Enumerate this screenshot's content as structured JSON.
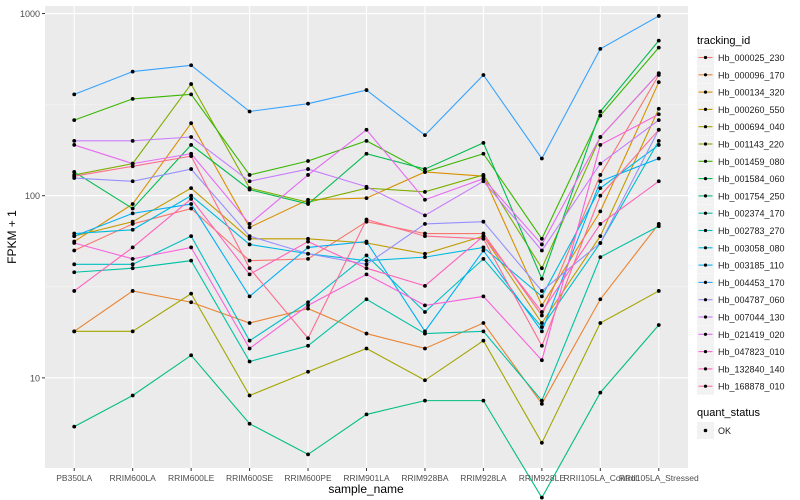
{
  "chart_data": {
    "type": "line",
    "title": "",
    "xlabel": "sample_name",
    "ylabel": "FPKM + 1",
    "y_scale": "log10",
    "ylim": [
      3.2,
      1100
    ],
    "yticks": [
      10,
      100,
      1000
    ],
    "ytick_labels": [
      "10",
      "100",
      "1000"
    ],
    "grid": true,
    "legend_position": "right",
    "categories": [
      "PB350LA",
      "RRIM600LA",
      "RRIM600LE",
      "RRIM600SE",
      "RRIM600PE",
      "RRIM901LA",
      "RRIM928BA",
      "RRIM928LA",
      "RRIM928LE",
      "RRII105LA_Control",
      "RRII105LA_Stressed"
    ],
    "color_legend_title": "tracking_id",
    "shape_legend_title": "quant_status",
    "shape_legend_label": "OK",
    "series": [
      {
        "name": "Hb_000025_230",
        "color": "#F8766D",
        "values": [
          50,
          70,
          85,
          44,
          45,
          72,
          62,
          62,
          22,
          130,
          460
        ]
      },
      {
        "name": "Hb_000096_170",
        "color": "#EA8331",
        "values": [
          18,
          30,
          26,
          20,
          24,
          17.5,
          14.5,
          20,
          7.2,
          27,
          70
        ]
      },
      {
        "name": "Hb_000134_320",
        "color": "#D89000",
        "values": [
          56,
          90,
          250,
          67,
          95,
          97,
          135,
          128,
          25,
          82,
          420
        ]
      },
      {
        "name": "Hb_000260_550",
        "color": "#C09B00",
        "values": [
          60,
          72,
          110,
          58,
          58,
          55,
          48,
          60,
          20,
          60,
          300
        ]
      },
      {
        "name": "Hb_000694_040",
        "color": "#A3A500",
        "values": [
          18,
          18,
          29,
          8,
          10.8,
          14.5,
          9.7,
          16,
          4.4,
          20,
          30
        ]
      },
      {
        "name": "Hb_001143_220",
        "color": "#7CAE00",
        "values": [
          130,
          150,
          410,
          110,
          92,
          110,
          105,
          130,
          40,
          210,
          470
        ]
      },
      {
        "name": "Hb_001459_080",
        "color": "#39B600",
        "values": [
          260,
          340,
          360,
          130,
          155,
          200,
          135,
          170,
          58,
          275,
          650
        ]
      },
      {
        "name": "Hb_001584_060",
        "color": "#00BB4E",
        "values": [
          135,
          85,
          190,
          108,
          90,
          170,
          140,
          195,
          35,
          290,
          710
        ]
      },
      {
        "name": "Hb_001754_250",
        "color": "#00BF7D",
        "values": [
          5.4,
          8,
          13.3,
          5.6,
          3.8,
          6.3,
          7.5,
          7.5,
          2.2,
          8.3,
          19.5
        ]
      },
      {
        "name": "Hb_002374_170",
        "color": "#00C1A3",
        "values": [
          38,
          40,
          44,
          12.3,
          15,
          27,
          17.5,
          18,
          7.5,
          46,
          68
        ]
      },
      {
        "name": "Hb_002783_270",
        "color": "#00BFC4",
        "values": [
          42,
          42,
          60,
          16,
          26,
          47,
          23,
          45,
          19,
          55,
          200
        ]
      },
      {
        "name": "Hb_003058_080",
        "color": "#00BAE0",
        "values": [
          62,
          65,
          100,
          54,
          48,
          44,
          46,
          52,
          28,
          110,
          190
        ]
      },
      {
        "name": "Hb_003185_110",
        "color": "#00B0F6",
        "values": [
          60,
          80,
          90,
          28,
          52,
          56,
          18,
          50,
          18,
          120,
          160
        ]
      },
      {
        "name": "Hb_004453_170",
        "color": "#35A2FF",
        "values": [
          360,
          480,
          520,
          290,
          320,
          380,
          215,
          460,
          160,
          640,
          970
        ]
      },
      {
        "name": "Hb_004787_060",
        "color": "#9590FF",
        "values": [
          125,
          120,
          140,
          60,
          48,
          42,
          70,
          72,
          30,
          55,
          230
        ]
      },
      {
        "name": "Hb_007044_130",
        "color": "#C77CFF",
        "values": [
          200,
          200,
          210,
          120,
          140,
          112,
          78,
          120,
          50,
          150,
          260
        ]
      },
      {
        "name": "Hb_021419_020",
        "color": "#E76BF3",
        "values": [
          190,
          150,
          170,
          70,
          130,
          230,
          95,
          124,
          54,
          210,
          470
        ]
      },
      {
        "name": "Hb_047823_010",
        "color": "#FA62DB",
        "values": [
          55,
          45,
          52,
          14.5,
          25,
          37,
          25,
          28,
          12.5,
          190,
          280
        ]
      },
      {
        "name": "Hb_132840_140",
        "color": "#FF62BC",
        "values": [
          30,
          52,
          96,
          37,
          56,
          40,
          32,
          60,
          23,
          70,
          120
        ]
      },
      {
        "name": "Hb_168878_010",
        "color": "#FF6C91",
        "values": [
          128,
          145,
          165,
          40,
          16.5,
          74,
          60,
          58,
          15,
          100,
          230
        ]
      }
    ]
  }
}
